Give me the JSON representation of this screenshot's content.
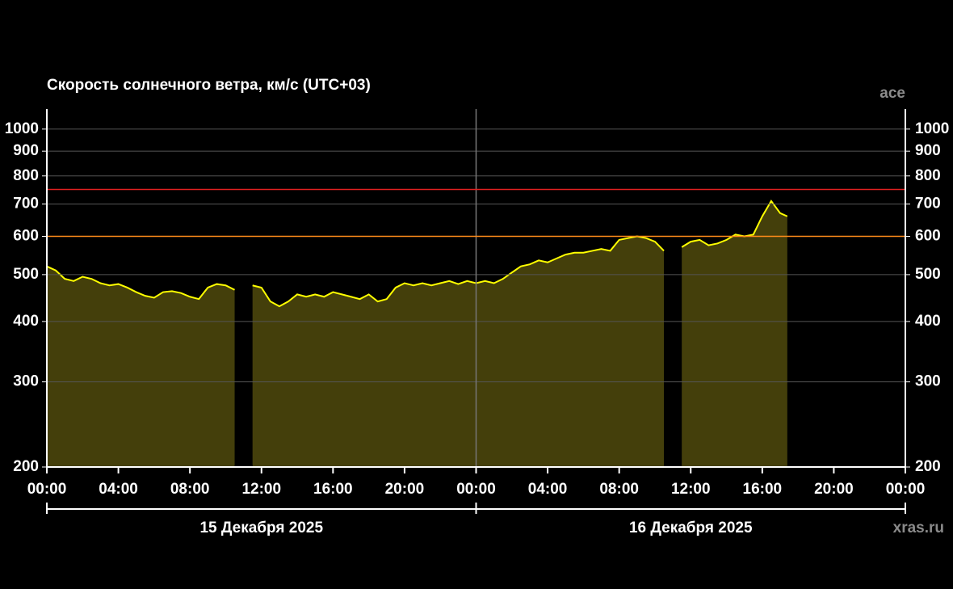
{
  "chart_data": {
    "type": "area",
    "title": "Скорость солнечного ветра, км/с (UTC+03)",
    "source": "ace",
    "watermark": "xras.ru",
    "log_scale": true,
    "grid": true,
    "ylim": [
      200,
      1100
    ],
    "yticks": [
      200,
      300,
      400,
      500,
      600,
      700,
      800,
      900,
      1000
    ],
    "xlim": [
      0,
      48
    ],
    "xticks": [
      {
        "value": 0,
        "label": "00:00"
      },
      {
        "value": 4,
        "label": "04:00"
      },
      {
        "value": 8,
        "label": "08:00"
      },
      {
        "value": 12,
        "label": "12:00"
      },
      {
        "value": 16,
        "label": "16:00"
      },
      {
        "value": 20,
        "label": "20:00"
      },
      {
        "value": 24,
        "label": "00:00"
      },
      {
        "value": 28,
        "label": "04:00"
      },
      {
        "value": 32,
        "label": "08:00"
      },
      {
        "value": 36,
        "label": "12:00"
      },
      {
        "value": 40,
        "label": "16:00"
      },
      {
        "value": 44,
        "label": "20:00"
      },
      {
        "value": 48,
        "label": "00:00"
      }
    ],
    "date_labels": [
      "15 Декабря 2025",
      "16 Декабря 2025"
    ],
    "day_divider": 24,
    "thresholds": [
      {
        "value": 750,
        "color": "#e02020"
      },
      {
        "value": 600,
        "color": "#ff8c1a"
      }
    ],
    "line_color": "#ffff00",
    "fill_color": "#443f0b",
    "x": [
      0,
      0.5,
      1,
      1.5,
      2,
      2.5,
      3,
      3.5,
      4,
      4.5,
      5,
      5.5,
      6,
      6.5,
      7,
      7.5,
      8,
      8.5,
      9,
      9.5,
      10,
      10.5,
      11,
      11.5,
      12,
      12.5,
      13,
      13.5,
      14,
      14.5,
      15,
      15.5,
      16,
      16.5,
      17,
      17.5,
      18,
      18.5,
      19,
      19.5,
      20,
      20.5,
      21,
      21.5,
      22,
      22.5,
      23,
      23.5,
      24,
      24.5,
      25,
      25.5,
      26,
      26.5,
      27,
      27.5,
      28,
      28.5,
      29,
      29.5,
      30,
      30.5,
      31,
      31.5,
      32,
      32.5,
      33,
      33.5,
      34,
      34.5,
      35,
      35.5,
      36,
      36.5,
      37,
      37.5,
      38,
      38.5,
      39,
      39.5,
      40,
      40.5,
      41,
      41.4
    ],
    "values": [
      520,
      510,
      490,
      485,
      495,
      490,
      480,
      475,
      478,
      470,
      460,
      452,
      448,
      460,
      462,
      458,
      450,
      445,
      470,
      478,
      475,
      465,
      null,
      475,
      470,
      440,
      430,
      440,
      455,
      450,
      455,
      450,
      460,
      455,
      450,
      445,
      455,
      440,
      445,
      470,
      480,
      475,
      480,
      475,
      480,
      485,
      478,
      485,
      480,
      485,
      480,
      490,
      505,
      520,
      525,
      535,
      530,
      540,
      550,
      555,
      555,
      560,
      565,
      560,
      590,
      595,
      600,
      595,
      585,
      560,
      null,
      570,
      585,
      590,
      575,
      580,
      590,
      605,
      600,
      605,
      660,
      710,
      670,
      660
    ]
  }
}
